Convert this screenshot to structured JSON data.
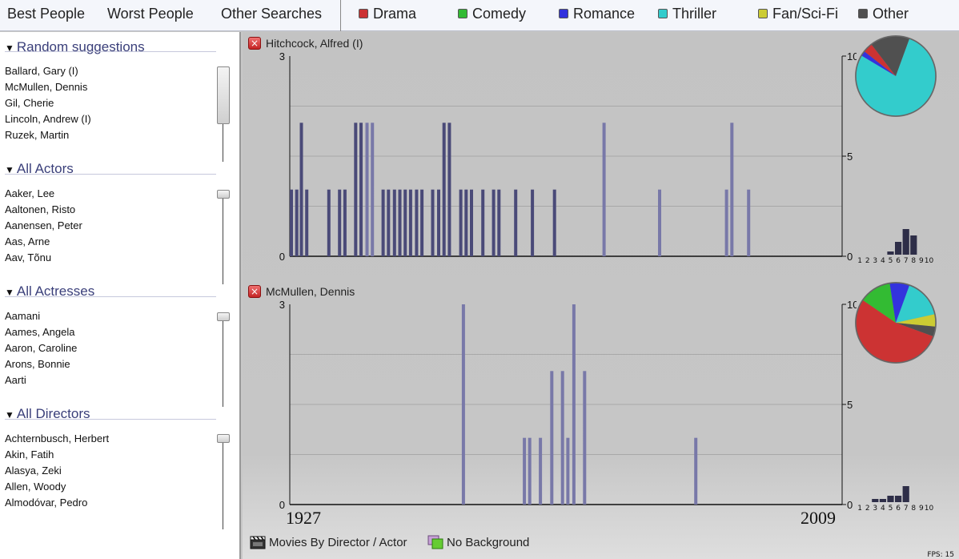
{
  "menu": {
    "items": [
      "Best People",
      "Worst People",
      "Other Searches"
    ]
  },
  "genres": [
    {
      "label": "Drama",
      "color": "#cc3333"
    },
    {
      "label": "Comedy",
      "color": "#33bb33"
    },
    {
      "label": "Romance",
      "color": "#3333dd"
    },
    {
      "label": "Thriller",
      "color": "#33cccc"
    },
    {
      "label": "Fan/Sci-Fi",
      "color": "#cccc33"
    },
    {
      "label": "Other",
      "color": "#505050"
    }
  ],
  "sidebar": {
    "sections": [
      {
        "title": "Random suggestions",
        "items": [
          "Ballard, Gary (I)",
          "McMullen, Dennis",
          "Gil, Cherie",
          "Lincoln, Andrew (I)",
          "Ruzek, Martin"
        ]
      },
      {
        "title": "All Actors",
        "items": [
          "Aaker, Lee",
          "Aaltonen, Risto",
          "Aanensen, Peter",
          "Aas, Arne",
          "Aav, Tõnu"
        ]
      },
      {
        "title": "All Actresses",
        "items": [
          "Aamani",
          "Aames, Angela",
          "Aaron, Caroline",
          "Arons, Bonnie",
          "Aarti"
        ]
      },
      {
        "title": "All Directors",
        "items": [
          "Achternbusch, Herbert",
          "Akin, Fatih",
          "Alasya, Zeki",
          "Allen, Woody",
          "Almodóvar, Pedro"
        ]
      }
    ]
  },
  "timeline": {
    "start_label": "1927",
    "end_label": "2009"
  },
  "chart_data": [
    {
      "type": "bar",
      "title": "Hitchcock, Alfred (I)",
      "x_range": [
        1927,
        2009
      ],
      "left_axis": {
        "min": 0,
        "max": 3,
        "ticks": [
          "0",
          "3"
        ]
      },
      "right_axis": {
        "min": 0,
        "max": 10,
        "ticks": [
          "0",
          "5",
          "10"
        ]
      },
      "bars": [
        {
          "x": 1927.0,
          "v": 1,
          "c": "dark"
        },
        {
          "x": 1927.8,
          "v": 1,
          "c": "dark"
        },
        {
          "x": 1928.5,
          "v": 2,
          "c": "dark"
        },
        {
          "x": 1929.3,
          "v": 1,
          "c": "dark"
        },
        {
          "x": 1932.6,
          "v": 1,
          "c": "dark"
        },
        {
          "x": 1934.2,
          "v": 1,
          "c": "dark"
        },
        {
          "x": 1935.0,
          "v": 1,
          "c": "dark"
        },
        {
          "x": 1936.6,
          "v": 2,
          "c": "dark"
        },
        {
          "x": 1937.4,
          "v": 2,
          "c": "dark"
        },
        {
          "x": 1938.3,
          "v": 2,
          "c": "light"
        },
        {
          "x": 1939.1,
          "v": 2,
          "c": "light"
        },
        {
          "x": 1940.7,
          "v": 1,
          "c": "dark"
        },
        {
          "x": 1941.5,
          "v": 1,
          "c": "dark"
        },
        {
          "x": 1942.4,
          "v": 1,
          "c": "dark"
        },
        {
          "x": 1943.2,
          "v": 1,
          "c": "dark"
        },
        {
          "x": 1944.0,
          "v": 1,
          "c": "dark"
        },
        {
          "x": 1944.8,
          "v": 1,
          "c": "dark"
        },
        {
          "x": 1945.7,
          "v": 1,
          "c": "dark"
        },
        {
          "x": 1946.5,
          "v": 1,
          "c": "dark"
        },
        {
          "x": 1948.1,
          "v": 1,
          "c": "dark"
        },
        {
          "x": 1949.0,
          "v": 1,
          "c": "dark"
        },
        {
          "x": 1949.8,
          "v": 2,
          "c": "dark"
        },
        {
          "x": 1950.6,
          "v": 2,
          "c": "dark"
        },
        {
          "x": 1952.3,
          "v": 1,
          "c": "dark"
        },
        {
          "x": 1953.1,
          "v": 1,
          "c": "dark"
        },
        {
          "x": 1953.9,
          "v": 1,
          "c": "dark"
        },
        {
          "x": 1955.6,
          "v": 1,
          "c": "dark"
        },
        {
          "x": 1957.2,
          "v": 1,
          "c": "dark"
        },
        {
          "x": 1958.0,
          "v": 1,
          "c": "dark"
        },
        {
          "x": 1960.5,
          "v": 1,
          "c": "dark"
        },
        {
          "x": 1963.0,
          "v": 1,
          "c": "dark"
        },
        {
          "x": 1966.3,
          "v": 1,
          "c": "dark"
        },
        {
          "x": 1973.7,
          "v": 2,
          "c": "light"
        },
        {
          "x": 1982.0,
          "v": 1,
          "c": "light"
        },
        {
          "x": 1992.0,
          "v": 1,
          "c": "light"
        },
        {
          "x": 1992.8,
          "v": 2,
          "c": "light"
        },
        {
          "x": 1995.3,
          "v": 1,
          "c": "light"
        }
      ],
      "pie": [
        {
          "genre": "Thriller",
          "value": 78
        },
        {
          "genre": "Romance",
          "value": 2
        },
        {
          "genre": "Drama",
          "value": 4
        },
        {
          "genre": "Other",
          "value": 16
        }
      ],
      "histogram": {
        "labels": [
          "1",
          "2",
          "3",
          "4",
          "5",
          "6",
          "7",
          "8",
          "9",
          "10"
        ],
        "values": [
          0,
          0,
          0,
          0,
          1,
          4,
          8,
          6,
          0,
          0
        ]
      }
    },
    {
      "type": "bar",
      "title": "McMullen, Dennis",
      "x_range": [
        1927,
        2009
      ],
      "left_axis": {
        "min": 0,
        "max": 3,
        "ticks": [
          "0",
          "3"
        ]
      },
      "right_axis": {
        "min": 0,
        "max": 10,
        "ticks": [
          "0",
          "5",
          "10"
        ]
      },
      "bars": [
        {
          "x": 1952.7,
          "v": 3,
          "c": "light"
        },
        {
          "x": 1961.8,
          "v": 1,
          "c": "light"
        },
        {
          "x": 1962.6,
          "v": 1,
          "c": "light"
        },
        {
          "x": 1964.2,
          "v": 1,
          "c": "light"
        },
        {
          "x": 1965.9,
          "v": 2,
          "c": "light"
        },
        {
          "x": 1967.5,
          "v": 2,
          "c": "light"
        },
        {
          "x": 1968.3,
          "v": 1,
          "c": "light"
        },
        {
          "x": 1969.2,
          "v": 3,
          "c": "light"
        },
        {
          "x": 1970.8,
          "v": 2,
          "c": "light"
        },
        {
          "x": 1987.4,
          "v": 1,
          "c": "light"
        }
      ],
      "pie": [
        {
          "genre": "Thriller",
          "value": 16
        },
        {
          "genre": "Fan/Sci-Fi",
          "value": 5
        },
        {
          "genre": "Other",
          "value": 4
        },
        {
          "genre": "Drama",
          "value": 54
        },
        {
          "genre": "Comedy",
          "value": 13
        },
        {
          "genre": "Romance",
          "value": 8
        }
      ],
      "histogram": {
        "labels": [
          "1",
          "2",
          "3",
          "4",
          "5",
          "6",
          "7",
          "8",
          "9",
          "10"
        ],
        "values": [
          0,
          0,
          1,
          1,
          2,
          2,
          5,
          0,
          0,
          0
        ]
      }
    }
  ],
  "bottom": {
    "movies_label": "Movies By Director / Actor",
    "background_label": "No Background",
    "fps": "FPS: 15"
  },
  "icons": {
    "close": "close-icon",
    "clapper": "clapperboard-icon",
    "background": "background-icon"
  }
}
